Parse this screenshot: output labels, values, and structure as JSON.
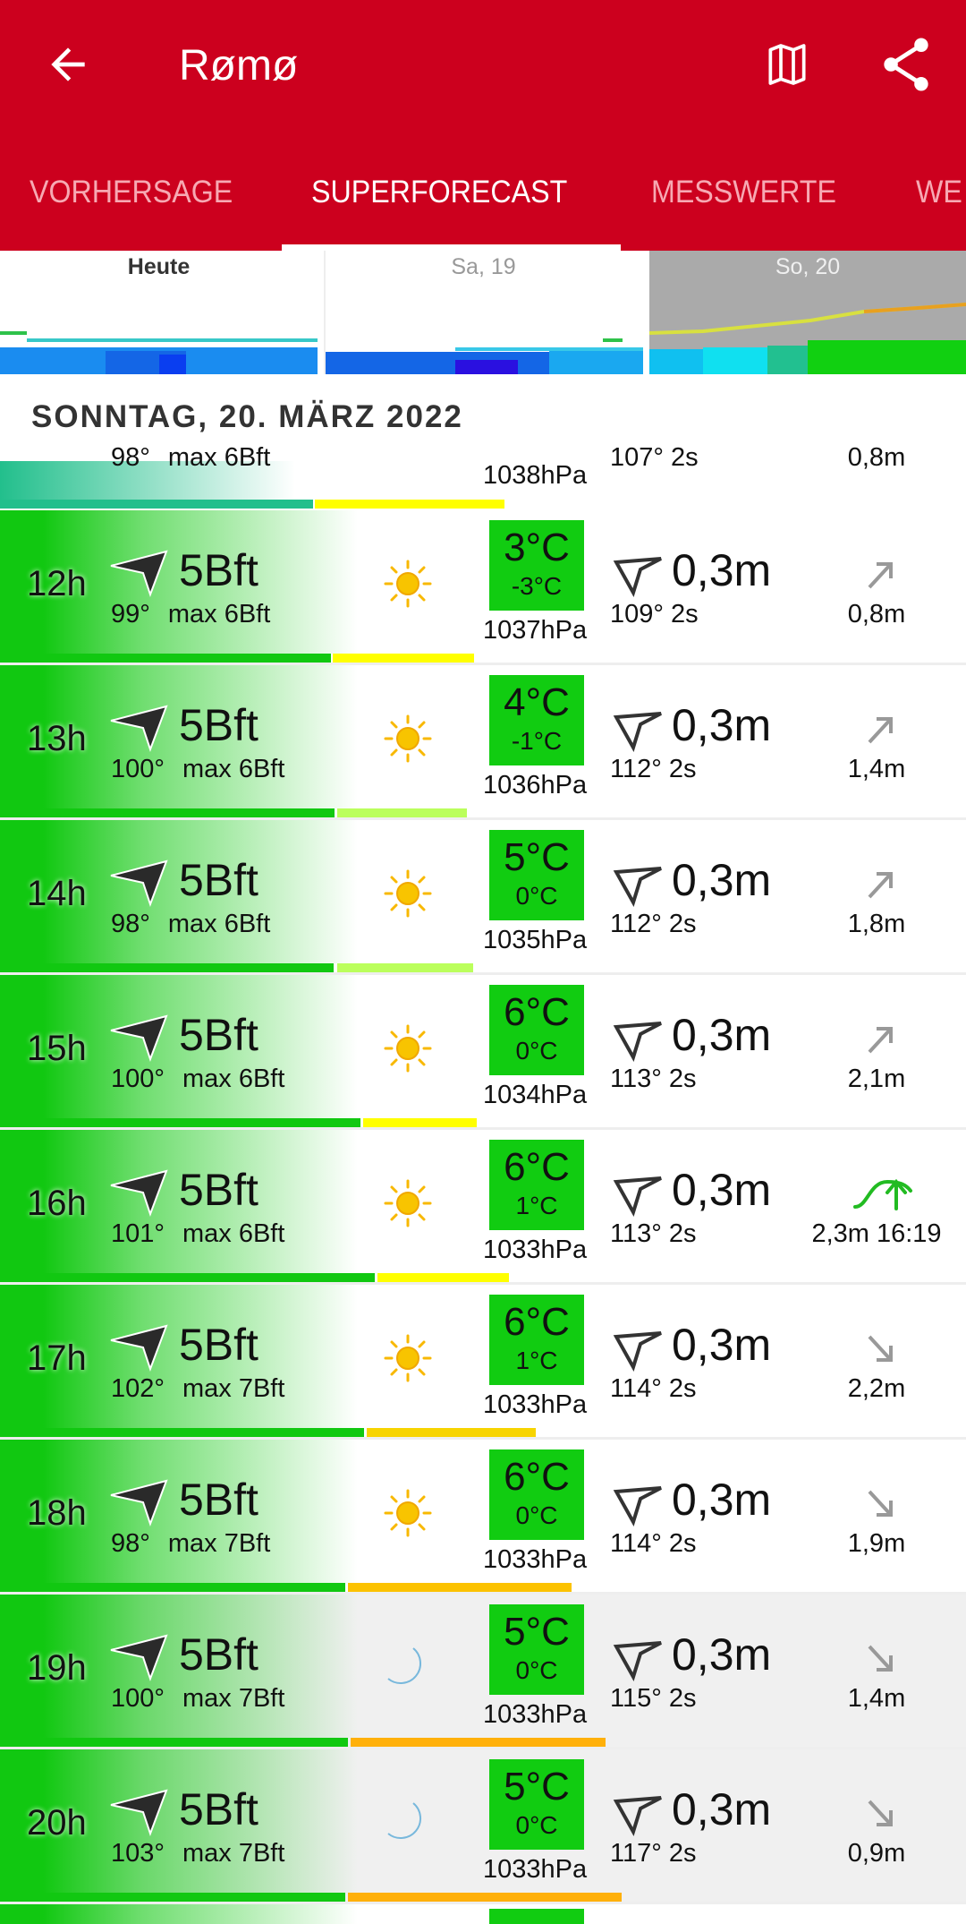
{
  "header": {
    "title": "Rømø",
    "back_icon": "arrow-left-icon",
    "map_icon": "map-icon",
    "share_icon": "share-icon",
    "accent": "#cc001e"
  },
  "tabs": [
    {
      "label": "VORHERSAGE"
    },
    {
      "label": "SUPERFORECAST",
      "active": true
    },
    {
      "label": "MESSWERTE"
    },
    {
      "label": "WE"
    }
  ],
  "day_strip": [
    {
      "label": "Heute"
    },
    {
      "label": "Sa, 19"
    },
    {
      "label": "So, 20",
      "selected": true
    }
  ],
  "date_header": "SONNTAG, 20. MÄRZ 2022",
  "partial_row": {
    "wind_dir": "98°",
    "wind_max": "max 6Bft",
    "pressure": "1038hPa",
    "swell_sub": "107° 2s",
    "tide": "0,8m"
  },
  "rows": [
    {
      "hour": "12h",
      "wind": "5Bft",
      "wind_dir": "99°",
      "wind_max": "max 6Bft",
      "weather": "sun",
      "temp": "3°C",
      "temp_feel": "-3°C",
      "pressure": "1037hPa",
      "swell": "0,3m",
      "swell_sub": "109° 2s",
      "tide_trend": "rising",
      "tide": "0,8m",
      "gust_color": "#ffff00"
    },
    {
      "hour": "13h",
      "wind": "5Bft",
      "wind_dir": "100°",
      "wind_max": "max 6Bft",
      "weather": "sun",
      "temp": "4°C",
      "temp_feel": "-1°C",
      "pressure": "1036hPa",
      "swell": "0,3m",
      "swell_sub": "112° 2s",
      "tide_trend": "rising",
      "tide": "1,4m",
      "gust_color": "#bbff5c"
    },
    {
      "hour": "14h",
      "wind": "5Bft",
      "wind_dir": "98°",
      "wind_max": "max 6Bft",
      "weather": "sun",
      "temp": "5°C",
      "temp_feel": "0°C",
      "pressure": "1035hPa",
      "swell": "0,3m",
      "swell_sub": "112° 2s",
      "tide_trend": "rising",
      "tide": "1,8m",
      "gust_color": "#bbff5c"
    },
    {
      "hour": "15h",
      "wind": "5Bft",
      "wind_dir": "100°",
      "wind_max": "max 6Bft",
      "weather": "sun",
      "temp": "6°C",
      "temp_feel": "0°C",
      "pressure": "1034hPa",
      "swell": "0,3m",
      "swell_sub": "113° 2s",
      "tide_trend": "rising",
      "tide": "2,1m",
      "gust_color": "#ffff00"
    },
    {
      "hour": "16h",
      "wind": "5Bft",
      "wind_dir": "101°",
      "wind_max": "max 6Bft",
      "weather": "sun",
      "temp": "6°C",
      "temp_feel": "1°C",
      "pressure": "1033hPa",
      "swell": "0,3m",
      "swell_sub": "113° 2s",
      "tide_trend": "high",
      "tide": "2,3m 16:19",
      "gust_color": "#ffff00"
    },
    {
      "hour": "17h",
      "wind": "5Bft",
      "wind_dir": "102°",
      "wind_max": "max 7Bft",
      "weather": "sun",
      "temp": "6°C",
      "temp_feel": "1°C",
      "pressure": "1033hPa",
      "swell": "0,3m",
      "swell_sub": "114° 2s",
      "tide_trend": "falling",
      "tide": "2,2m",
      "gust_color": "#f7d400"
    },
    {
      "hour": "18h",
      "wind": "5Bft",
      "wind_dir": "98°",
      "wind_max": "max 7Bft",
      "weather": "sun",
      "temp": "6°C",
      "temp_feel": "0°C",
      "pressure": "1033hPa",
      "swell": "0,3m",
      "swell_sub": "114° 2s",
      "tide_trend": "falling",
      "tide": "1,9m",
      "gust_color": "#fcc200"
    },
    {
      "hour": "19h",
      "wind": "5Bft",
      "wind_dir": "100°",
      "wind_max": "max 7Bft",
      "weather": "moon",
      "temp": "5°C",
      "temp_feel": "0°C",
      "pressure": "1033hPa",
      "swell": "0,3m",
      "swell_sub": "115° 2s",
      "tide_trend": "falling",
      "tide": "1,4m",
      "gust_color": "#ffb00a"
    },
    {
      "hour": "20h",
      "wind": "5Bft",
      "wind_dir": "103°",
      "wind_max": "max 7Bft",
      "weather": "moon",
      "temp": "5°C",
      "temp_feel": "0°C",
      "pressure": "1033hPa",
      "swell": "0,3m",
      "swell_sub": "117° 2s",
      "tide_trend": "falling",
      "tide": "0,9m",
      "gust_color": "#ffb00a"
    }
  ]
}
